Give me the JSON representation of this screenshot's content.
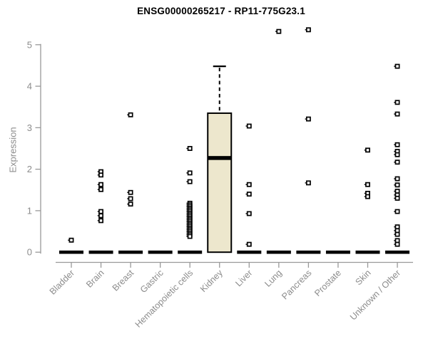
{
  "colors": {
    "box_fill": "#ede7cd",
    "box_border": "#000000",
    "median": "#000000",
    "point_stroke": "#000000",
    "point_fill": "#ffffff",
    "axis": "#999999",
    "tick_label": "#8c8c8c",
    "title": "#000000",
    "background": "#ffffff"
  },
  "chart_data": {
    "type": "boxplot",
    "title": "ENSG00000265217 - RP11-775G23.1",
    "ylabel": "Expression",
    "xlabel": "",
    "ylim": [
      0,
      5
    ],
    "yticks": [
      0,
      1,
      2,
      3,
      4,
      5
    ],
    "grid": "off",
    "legend": "none",
    "categories": [
      "Bladder",
      "Brain",
      "Breast",
      "Gastric",
      "Hematopoietic cells",
      "Kidney",
      "Liver",
      "Lung",
      "Pancreas",
      "Prostate",
      "Skin",
      "Unknown / Other"
    ],
    "boxes": [
      {
        "category": "Bladder",
        "q1": 0,
        "median": 0,
        "q3": 0,
        "whisker_low": 0,
        "whisker_high": 0
      },
      {
        "category": "Brain",
        "q1": 0,
        "median": 0,
        "q3": 0,
        "whisker_low": 0,
        "whisker_high": 0
      },
      {
        "category": "Breast",
        "q1": 0,
        "median": 0,
        "q3": 0,
        "whisker_low": 0,
        "whisker_high": 0
      },
      {
        "category": "Gastric",
        "q1": 0,
        "median": 0,
        "q3": 0,
        "whisker_low": 0,
        "whisker_high": 0
      },
      {
        "category": "Hematopoietic cells",
        "q1": 0,
        "median": 0,
        "q3": 0,
        "whisker_low": 0,
        "whisker_high": 0
      },
      {
        "category": "Kidney",
        "q1": 0,
        "median": 2.27,
        "q3": 3.35,
        "whisker_low": 0,
        "whisker_high": 4.48
      },
      {
        "category": "Liver",
        "q1": 0,
        "median": 0,
        "q3": 0,
        "whisker_low": 0,
        "whisker_high": 0
      },
      {
        "category": "Lung",
        "q1": 0,
        "median": 0,
        "q3": 0,
        "whisker_low": 0,
        "whisker_high": 0
      },
      {
        "category": "Pancreas",
        "q1": 0,
        "median": 0,
        "q3": 0,
        "whisker_low": 0,
        "whisker_high": 0
      },
      {
        "category": "Prostate",
        "q1": 0,
        "median": 0,
        "q3": 0,
        "whisker_low": 0,
        "whisker_high": 0
      },
      {
        "category": "Skin",
        "q1": 0,
        "median": 0,
        "q3": 0,
        "whisker_low": 0,
        "whisker_high": 0
      },
      {
        "category": "Unknown / Other",
        "q1": 0,
        "median": 0,
        "q3": 0,
        "whisker_low": 0,
        "whisker_high": 0
      }
    ],
    "points": [
      {
        "category": "Bladder",
        "values": [
          0.29
        ]
      },
      {
        "category": "Brain",
        "values": [
          1.94,
          1.86,
          1.63,
          1.51,
          0.98,
          0.88,
          0.76
        ]
      },
      {
        "category": "Breast",
        "values": [
          3.31,
          1.44,
          1.29,
          1.16
        ]
      },
      {
        "category": "Gastric",
        "values": []
      },
      {
        "category": "Hematopoietic cells",
        "values": [
          2.5,
          1.91,
          1.7,
          1.18,
          1.14,
          1.1,
          1.06,
          1.02,
          0.98,
          0.94,
          0.9,
          0.86,
          0.82,
          0.78,
          0.74,
          0.7,
          0.66,
          0.62,
          0.58,
          0.54,
          0.5,
          0.46,
          0.42,
          0.38
        ]
      },
      {
        "category": "Kidney",
        "values": []
      },
      {
        "category": "Liver",
        "values": [
          3.04,
          1.63,
          1.4,
          0.93,
          0.19
        ]
      },
      {
        "category": "Lung",
        "values": [
          5.32
        ]
      },
      {
        "category": "Pancreas",
        "values": [
          5.36,
          3.21,
          1.67
        ]
      },
      {
        "category": "Prostate",
        "values": []
      },
      {
        "category": "Skin",
        "values": [
          2.46,
          1.63,
          1.42,
          1.34
        ]
      },
      {
        "category": "Unknown / Other",
        "values": [
          4.48,
          3.61,
          3.33,
          2.59,
          2.43,
          2.35,
          2.17,
          1.77,
          1.62,
          1.47,
          1.38,
          1.3,
          0.98,
          0.61,
          0.52,
          0.43,
          0.28,
          0.19
        ]
      }
    ]
  }
}
